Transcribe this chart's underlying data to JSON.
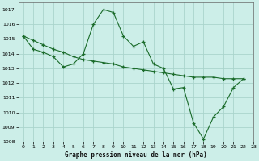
{
  "title": "Graphe pression niveau de la mer (hPa)",
  "background_color": "#cceee8",
  "grid_color": "#aad4cc",
  "line_color": "#1a6b2a",
  "series1_x": [
    0,
    1,
    2,
    3,
    4,
    5,
    6,
    7,
    8,
    9,
    10,
    11,
    12,
    13,
    14,
    15,
    16,
    17,
    18,
    19,
    20,
    21,
    22
  ],
  "series1_y": [
    1015.2,
    1014.3,
    1014.1,
    1013.8,
    1013.1,
    1013.3,
    1014.0,
    1016.0,
    1017.0,
    1016.8,
    1015.2,
    1014.5,
    1014.8,
    1013.3,
    1013.0,
    1011.6,
    1011.7,
    1009.3,
    1008.2,
    1009.7,
    1010.4,
    1011.7,
    1012.3
  ],
  "series2_x": [
    0,
    1,
    2,
    3,
    4,
    5,
    6,
    7,
    8,
    9,
    10,
    11,
    12,
    13,
    14,
    15,
    16,
    17,
    18,
    19,
    20,
    21,
    22
  ],
  "series2_y": [
    1015.2,
    1014.9,
    1014.6,
    1014.3,
    1014.1,
    1013.8,
    1013.6,
    1013.5,
    1013.4,
    1013.3,
    1013.1,
    1013.0,
    1012.9,
    1012.8,
    1012.7,
    1012.6,
    1012.5,
    1012.4,
    1012.4,
    1012.4,
    1012.3,
    1012.3,
    1012.3
  ],
  "ylim": [
    1008,
    1017.5
  ],
  "xlim": [
    -0.5,
    23
  ],
  "yticks": [
    1008,
    1009,
    1010,
    1011,
    1012,
    1013,
    1014,
    1015,
    1016,
    1017
  ],
  "xticks": [
    0,
    1,
    2,
    3,
    4,
    5,
    6,
    7,
    8,
    9,
    10,
    11,
    12,
    13,
    14,
    15,
    16,
    17,
    18,
    19,
    20,
    21,
    22,
    23
  ]
}
